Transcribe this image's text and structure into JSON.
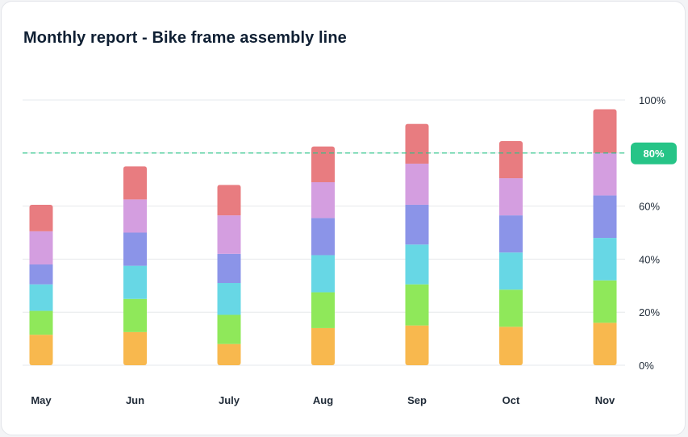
{
  "title": "Monthly report - Bike frame assembly line",
  "chart_data": {
    "type": "bar",
    "stacked": true,
    "categories": [
      "May",
      "Jun",
      "July",
      "Aug",
      "Sep",
      "Oct",
      "Nov"
    ],
    "series": [
      {
        "color": "#f8b84e",
        "values": [
          11.5,
          12.5,
          8,
          14,
          15,
          14.5,
          16
        ]
      },
      {
        "color": "#8fe85a",
        "values": [
          9,
          12.5,
          11,
          13.5,
          15.5,
          14,
          16
        ]
      },
      {
        "color": "#67d7e5",
        "values": [
          10,
          12.5,
          12,
          14,
          15,
          14,
          16
        ]
      },
      {
        "color": "#8b94e8",
        "values": [
          7.5,
          12.5,
          11,
          14,
          15,
          14,
          16
        ]
      },
      {
        "color": "#d49ee0",
        "values": [
          12.5,
          12.5,
          14.5,
          13.5,
          15.5,
          14,
          16
        ]
      },
      {
        "color": "#e87c80",
        "values": [
          10,
          12.5,
          11.5,
          13.5,
          15,
          14,
          16.5
        ]
      }
    ],
    "ylim": [
      0,
      100
    ],
    "yticks": [
      "0%",
      "20%",
      "40%",
      "60%",
      "80%",
      "100%"
    ],
    "ytick_values": [
      0,
      20,
      40,
      60,
      80,
      100
    ],
    "target": {
      "value": 80,
      "label": "80%",
      "color": "#26c487"
    },
    "grid": true
  }
}
